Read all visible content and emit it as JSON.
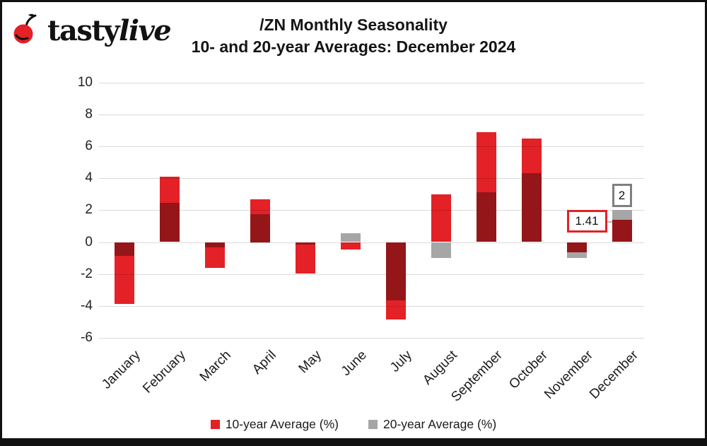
{
  "header": {
    "brand_first": "tasty",
    "brand_second": "live",
    "title_line1": "/ZN Monthly Seasonality",
    "title_line2": "10- and 20-year Averages: December 2024"
  },
  "chart_data": {
    "type": "bar",
    "title": "/ZN Monthly Seasonality",
    "subtitle": "10- and 20-year Averages: December 2024",
    "categories": [
      "January",
      "February",
      "March",
      "April",
      "May",
      "June",
      "July",
      "August",
      "September",
      "October",
      "November",
      "December"
    ],
    "series": [
      {
        "name": "10-year Average (%)",
        "color": "#e32126",
        "values": [
          -3.85,
          4.1,
          -1.6,
          2.7,
          -1.95,
          -0.45,
          -4.85,
          3.0,
          6.9,
          6.5,
          -0.65,
          1.41
        ]
      },
      {
        "name": "20-year Average (%)",
        "color": "#a6a6a6",
        "values": [
          -0.85,
          2.45,
          -0.35,
          1.75,
          -0.15,
          0.55,
          -3.65,
          -1.0,
          3.1,
          4.3,
          -1.0,
          2.0
        ]
      }
    ],
    "ylim": [
      -6,
      10
    ],
    "yticks": [
      10,
      8,
      6,
      4,
      2,
      0,
      -2,
      -4,
      -6
    ],
    "grid": true,
    "legend_position": "bottom",
    "bar_overlap_render": "multiply",
    "annotations": [
      {
        "text": "1.41",
        "category_index": 11,
        "value": 1.41,
        "series": "10-year Average (%)",
        "placement": "left",
        "border_color": "#e32126"
      },
      {
        "text": "2",
        "category_index": 11,
        "value": 2,
        "series": "20-year Average (%)",
        "placement": "above",
        "border_color": "#7f7f7f"
      }
    ]
  },
  "legend": {
    "items": [
      {
        "label": "10-year Average (%)",
        "color": "#e32126"
      },
      {
        "label": "20-year Average (%)",
        "color": "#a6a6a6"
      }
    ]
  },
  "colors": {
    "gridline": "#d9d9d9",
    "frame": "#111111",
    "cherry_red": "#e32126"
  }
}
